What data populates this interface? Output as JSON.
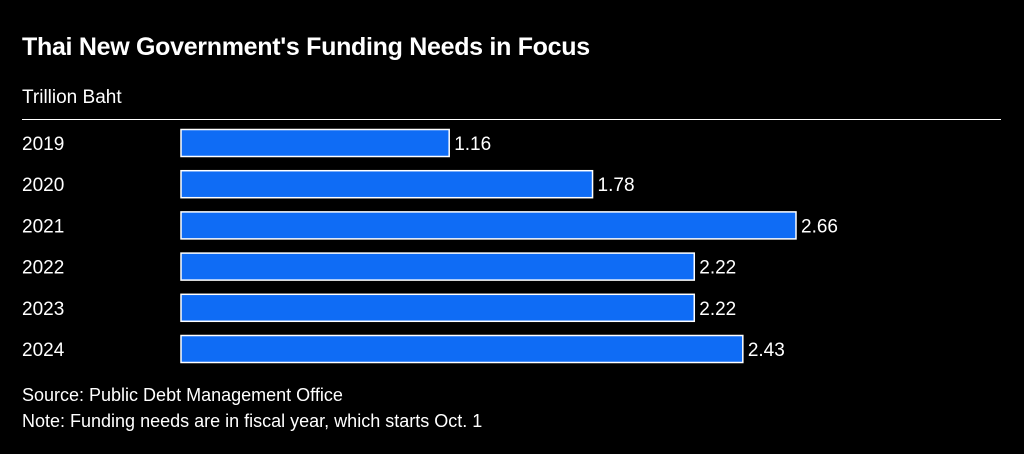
{
  "chart_data": {
    "type": "bar",
    "orientation": "horizontal",
    "title": "Thai New Government's Funding Needs in Focus",
    "subtitle": "Trillion Baht",
    "categories": [
      "2019",
      "2020",
      "2021",
      "2022",
      "2023",
      "2024"
    ],
    "values": [
      1.16,
      1.78,
      2.66,
      2.22,
      2.22,
      2.43
    ],
    "value_labels": [
      "1.16",
      "1.78",
      "2.66",
      "2.22",
      "2.22",
      "2.43"
    ],
    "xlim": [
      0,
      2.66
    ],
    "grid": false,
    "bar_color": "#0f6cf5",
    "bar_outline_color": "#ffffff",
    "background_color": "#000000",
    "source": "Source: Public Debt Management Office",
    "note": "Note: Funding needs are in fiscal year, which starts Oct. 1"
  }
}
